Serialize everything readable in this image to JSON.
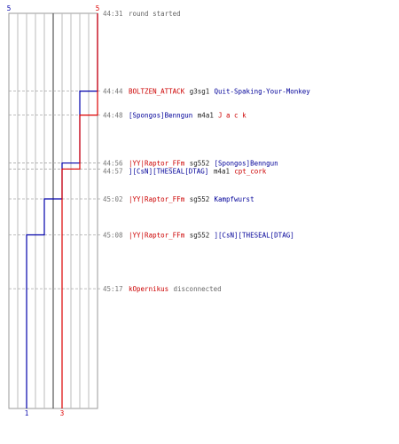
{
  "chart_data": {
    "type": "line",
    "title": "",
    "series": [
      {
        "name": "",
        "color": "#0000aa",
        "start_score": 5,
        "end_score": 1,
        "steps": [
          {
            "time": "44:44",
            "score": 4
          },
          {
            "time": "44:56",
            "score": 3
          },
          {
            "time": "45:02",
            "score": 2
          },
          {
            "time": "45:08",
            "score": 1
          }
        ]
      },
      {
        "name": "",
        "color": "#dd0000",
        "start_score": 5,
        "end_score": 3,
        "steps": [
          {
            "time": "44:48",
            "score": 4
          },
          {
            "time": "44:57",
            "score": 3
          }
        ]
      }
    ],
    "grid_count": 10,
    "events": [
      {
        "time": "44:31",
        "parts": [
          {
            "text": "round started",
            "color": "#666666"
          }
        ]
      },
      {
        "time": "44:44",
        "parts": [
          {
            "text": "BOLTZEN_ATTACK",
            "color": "#cc0000"
          },
          {
            "text": "g3sg1",
            "color": "#222222"
          },
          {
            "text": "Quit-Spaking-Your-Monkey",
            "color": "#000099"
          }
        ]
      },
      {
        "time": "44:48",
        "parts": [
          {
            "text": "[Spongos]Benngun",
            "color": "#000099"
          },
          {
            "text": "m4a1",
            "color": "#222222"
          },
          {
            "text": "J a c k",
            "color": "#cc0000"
          }
        ]
      },
      {
        "time": "44:56",
        "parts": [
          {
            "text": "|YY|Raptor_FFm",
            "color": "#cc0000"
          },
          {
            "text": "sg552",
            "color": "#222222"
          },
          {
            "text": "[Spongos]Benngun",
            "color": "#000099"
          }
        ]
      },
      {
        "time": "44:57",
        "parts": [
          {
            "text": "][CsN][THESEAL[DTAG]",
            "color": "#000099"
          },
          {
            "text": "m4a1",
            "color": "#222222"
          },
          {
            "text": "cpt_cork",
            "color": "#cc0000"
          }
        ]
      },
      {
        "time": "45:02",
        "parts": [
          {
            "text": "|YY|Raptor_FFm",
            "color": "#cc0000"
          },
          {
            "text": "sg552",
            "color": "#222222"
          },
          {
            "text": "Kampfwurst",
            "color": "#000099"
          }
        ]
      },
      {
        "time": "45:08",
        "parts": [
          {
            "text": "|YY|Raptor_FFm",
            "color": "#cc0000"
          },
          {
            "text": "sg552",
            "color": "#222222"
          },
          {
            "text": "][CsN][THESEAL[DTAG]",
            "color": "#000099"
          }
        ]
      },
      {
        "time": "45:17",
        "parts": [
          {
            "text": "kOpernikus",
            "color": "#cc0000"
          },
          {
            "text": "disconnected",
            "color": "#666666"
          }
        ]
      }
    ],
    "end_time": "45:37"
  }
}
